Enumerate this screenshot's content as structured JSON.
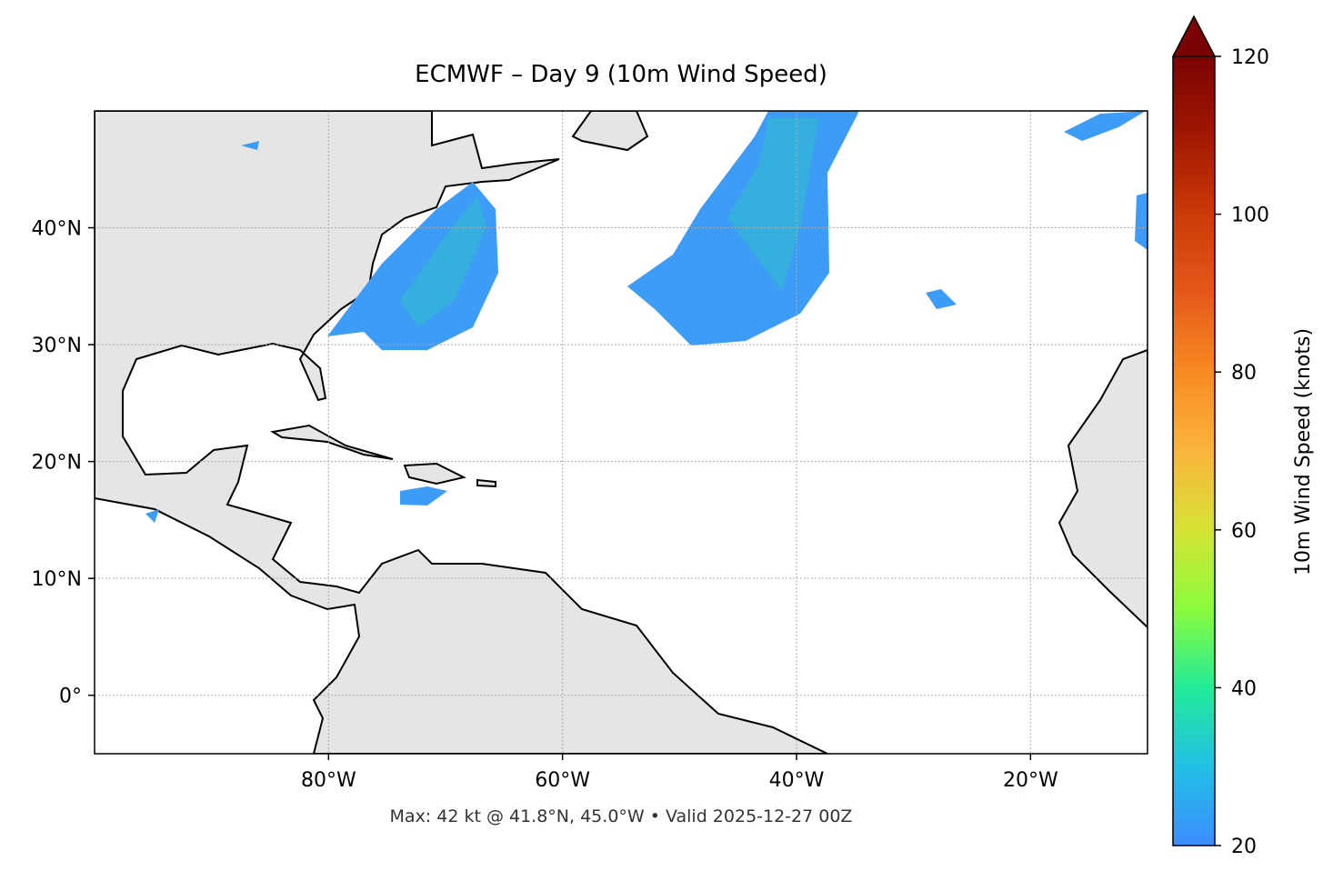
{
  "chart_data": {
    "type": "map",
    "title": "ECMWF – Day 9 (10m Wind Speed)",
    "note": "Max: 42 kt @ 41.8°N, 45.0°W • Valid 2025-12-27 00Z",
    "xlim": [
      -100,
      -10
    ],
    "ylim": [
      -5,
      50
    ],
    "xticks": [
      {
        "value": -80,
        "label": "80°W"
      },
      {
        "value": -60,
        "label": "60°W"
      },
      {
        "value": -40,
        "label": "40°W"
      },
      {
        "value": -20,
        "label": "20°W"
      }
    ],
    "yticks": [
      {
        "value": 0,
        "label": "0°"
      },
      {
        "value": 10,
        "label": "10°N"
      },
      {
        "value": 20,
        "label": "20°N"
      },
      {
        "value": 30,
        "label": "30°N"
      },
      {
        "value": 40,
        "label": "40°N"
      }
    ],
    "grid": true,
    "colorbar": {
      "label": "10m Wind Speed (knots)",
      "lim": [
        20,
        120
      ],
      "ticks": [
        20,
        40,
        60,
        80,
        100,
        120
      ]
    }
  }
}
